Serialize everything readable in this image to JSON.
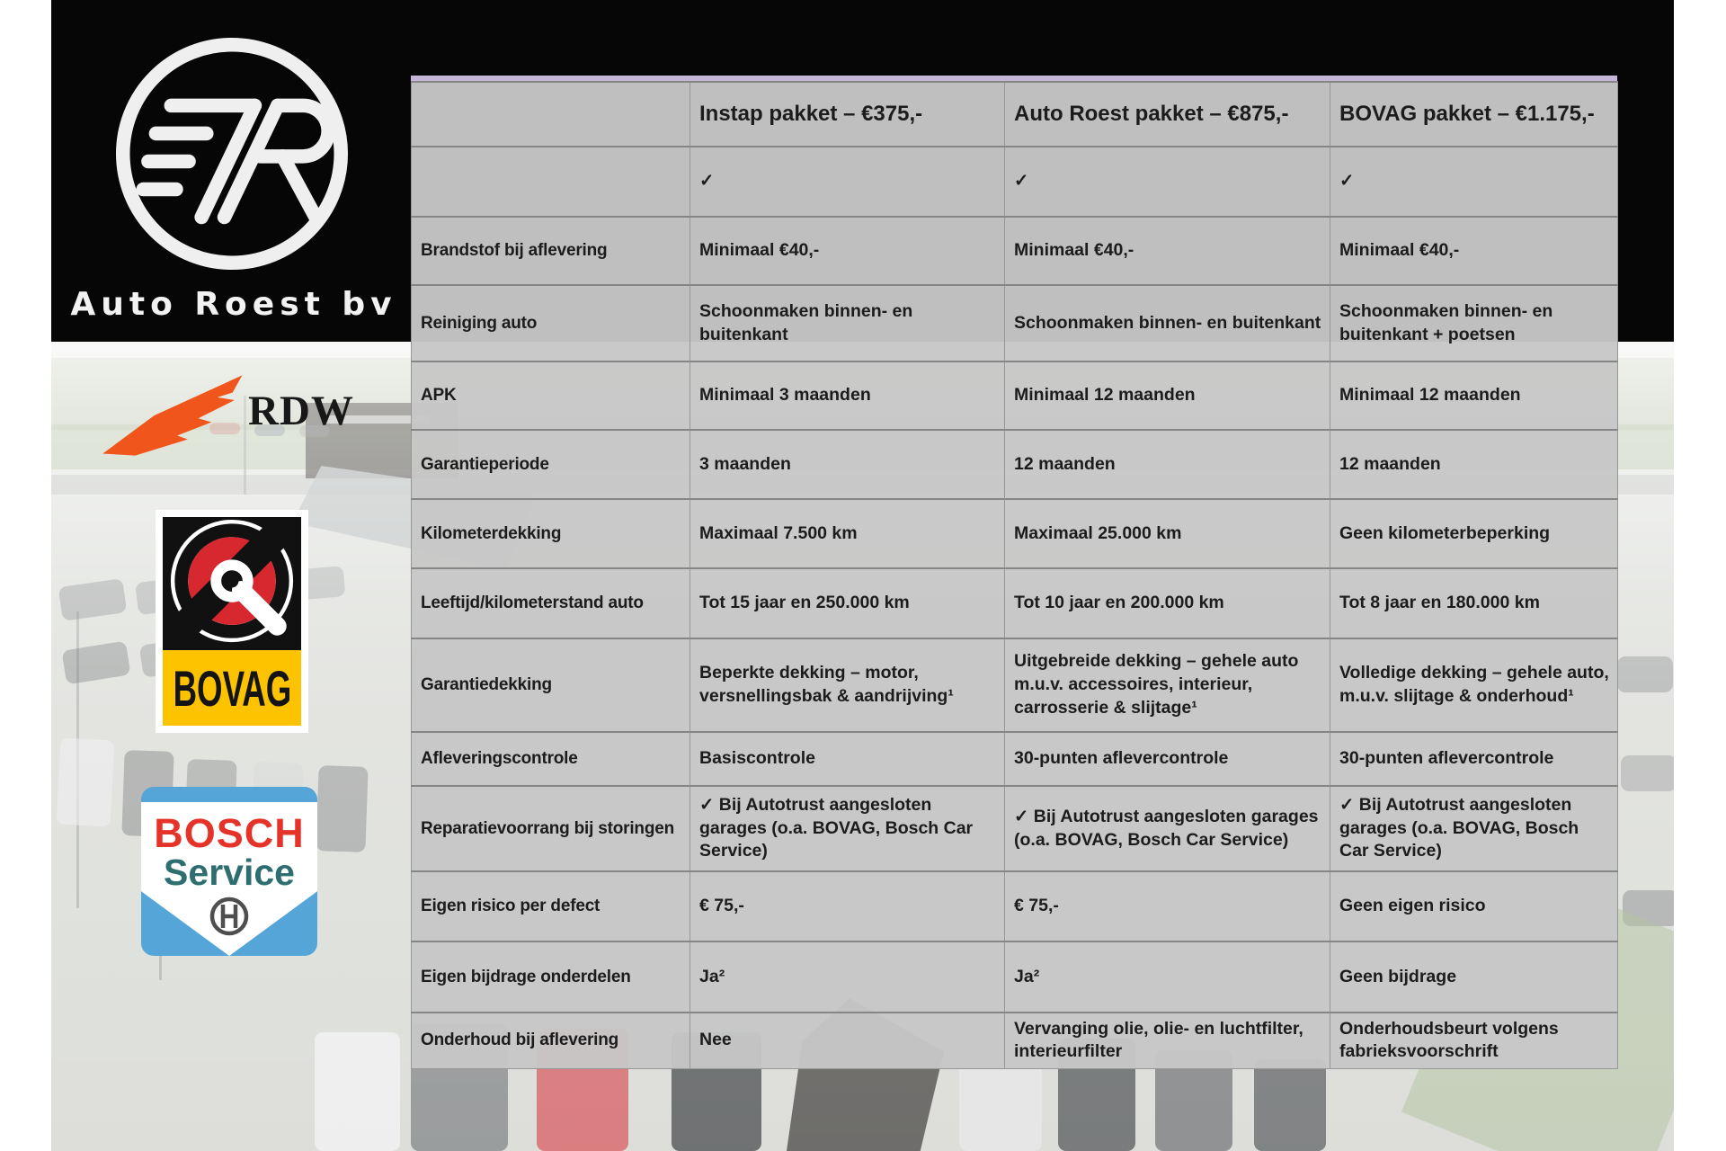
{
  "brand": {
    "logo_text": "Auto Roest bv"
  },
  "badges": {
    "rdw_label": "RDW",
    "bovag_label": "BOVAG",
    "bosch_line1": "BOSCH",
    "bosch_line2": "Service"
  },
  "colors": {
    "band_black": "#060606",
    "table_gray": "#c7c7c7",
    "table_accent_lavender": "#c4b6d6",
    "rdw_orange": "#f0561b",
    "bovag_yellow": "#fdc300",
    "bovag_red": "#d7282f",
    "bosch_red": "#e5332a",
    "bosch_teal": "#2f6e70",
    "bosch_blue": "#56a5d9"
  },
  "table": {
    "columns": [
      "",
      "Instap pakket – €375,-",
      "Auto Roest pakket – €875,-",
      "BOVAG pakket – €1.175,-"
    ],
    "rows": [
      {
        "label": "",
        "values": [
          "✓",
          "✓",
          "✓"
        ]
      },
      {
        "label": "Brandstof bij aflevering",
        "values": [
          "Minimaal €40,-",
          "Minimaal €40,-",
          "Minimaal €40,-"
        ]
      },
      {
        "label": "Reiniging auto",
        "values": [
          "Schoonmaken binnen- en buitenkant",
          "Schoonmaken binnen- en buitenkant",
          "Schoonmaken binnen- en buitenkant + poetsen"
        ]
      },
      {
        "label": "APK",
        "values": [
          "Minimaal 3 maanden",
          "Minimaal 12 maanden",
          "Minimaal 12 maanden"
        ]
      },
      {
        "label": "Garantieperiode",
        "values": [
          "3 maanden",
          "12 maanden",
          "12 maanden"
        ]
      },
      {
        "label": "Kilometerdekking",
        "values": [
          "Maximaal 7.500 km",
          "Maximaal 25.000 km",
          "Geen kilometerbeperking"
        ]
      },
      {
        "label": "Leeftijd/kilometerstand auto",
        "values": [
          "Tot 15 jaar en 250.000 km",
          "Tot 10 jaar en 200.000 km",
          "Tot 8 jaar en 180.000 km"
        ]
      },
      {
        "label": "Garantiedekking",
        "values": [
          "Beperkte dekking – motor, versnellingsbak & aandrijving¹",
          "Uitgebreide dekking – gehele auto m.u.v. accessoires, interieur, carrosserie & slijtage¹",
          "Volledige dekking – gehele auto, m.u.v. slijtage & onderhoud¹"
        ]
      },
      {
        "label": "Afleveringscontrole",
        "values": [
          "Basiscontrole",
          "30-punten aflevercontrole",
          "30-punten aflevercontrole"
        ]
      },
      {
        "label": "Reparatievoorrang bij storingen",
        "values": [
          "✓ Bij Autotrust aangesloten garages (o.a. BOVAG, Bosch Car Service)",
          "✓ Bij Autotrust aangesloten garages (o.a. BOVAG, Bosch Car Service)",
          "✓ Bij Autotrust aangesloten garages (o.a. BOVAG, Bosch Car Service)"
        ]
      },
      {
        "label": "Eigen risico per defect",
        "values": [
          "€ 75,-",
          "€ 75,-",
          "Geen eigen risico"
        ]
      },
      {
        "label": "Eigen bijdrage onderdelen",
        "values": [
          "Ja²",
          "Ja²",
          "Geen bijdrage"
        ]
      },
      {
        "label": "Onderhoud bij aflevering",
        "values": [
          "Nee",
          "Vervanging olie, olie- en luchtfilter, interieurfilter",
          "Onderhoudsbeurt volgens fabrieksvoorschrift"
        ]
      }
    ]
  }
}
